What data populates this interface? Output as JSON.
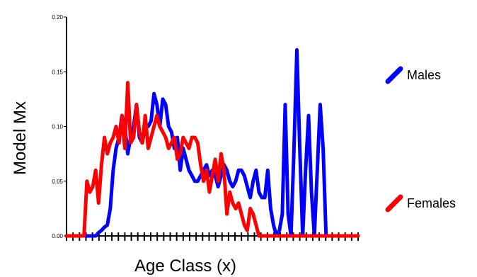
{
  "chart_data": {
    "type": "line",
    "xlabel": "Age Class (x)",
    "ylabel": "Model Mx",
    "ylim": [
      0,
      0.2
    ],
    "yticks": [
      "0.00",
      "0.05",
      "0.10",
      "0.15",
      "0.20"
    ],
    "x": [
      0,
      1,
      2,
      3,
      4,
      5,
      6,
      7,
      8,
      9,
      10,
      11,
      12,
      13,
      14,
      15,
      16,
      17,
      18,
      19,
      20,
      21,
      22,
      23,
      24,
      25,
      26,
      27,
      28,
      29,
      30,
      31,
      32,
      33,
      34,
      35,
      36,
      37,
      38,
      39,
      40,
      41,
      42,
      43,
      44,
      45,
      46,
      47,
      48,
      49,
      50,
      51,
      52,
      53,
      54,
      55,
      56,
      57,
      58,
      59,
      60,
      61,
      62,
      63,
      64,
      65,
      66,
      67,
      68,
      69,
      70,
      71,
      72,
      73,
      74,
      75,
      76,
      77,
      78,
      79,
      80,
      81,
      82,
      83,
      84,
      85,
      86,
      87,
      88,
      89,
      90,
      91,
      92,
      93,
      94,
      95,
      96,
      97,
      98,
      99,
      100
    ],
    "series": [
      {
        "name": "Males",
        "color": "#0000ff",
        "values": [
          0,
          0,
          0,
          0,
          0,
          0,
          0,
          0,
          0,
          0,
          0,
          0.003,
          0.005,
          0.008,
          0.01,
          0.025,
          0.06,
          0.08,
          0.09,
          0.11,
          0.1,
          0.075,
          0.09,
          0.1,
          0.12,
          0.09,
          0.085,
          0.1,
          0.1,
          0.105,
          0.13,
          0.12,
          0.1,
          0.125,
          0.12,
          0.1,
          0.095,
          0.08,
          0.09,
          0.06,
          0.08,
          0.07,
          0.06,
          0.055,
          0.05,
          0.05,
          0.055,
          0.06,
          0.065,
          0.055,
          0.06,
          0.055,
          0.045,
          0.055,
          0.065,
          0.06,
          0.05,
          0.045,
          0.05,
          0.06,
          0.06,
          0.055,
          0.045,
          0.035,
          0.05,
          0.06,
          0.04,
          0.035,
          0.035,
          0.06,
          0.025,
          0.01,
          0,
          0.005,
          0.02,
          0.12,
          0.02,
          0,
          0.08,
          0.17,
          0.08,
          0,
          0.06,
          0.11,
          0.04,
          0,
          0.06,
          0.12,
          0.08,
          0,
          0,
          0,
          0,
          0,
          0,
          0,
          0,
          0,
          0,
          0,
          0
        ]
      },
      {
        "name": "Females",
        "color": "#ff0000",
        "values": [
          0,
          0,
          0,
          0,
          0,
          0,
          0,
          0.05,
          0.04,
          0.045,
          0.06,
          0.03,
          0.065,
          0.09,
          0.075,
          0.085,
          0.09,
          0.1,
          0.085,
          0.11,
          0.08,
          0.14,
          0.085,
          0.09,
          0.12,
          0.095,
          0.085,
          0.11,
          0.08,
          0.09,
          0.1,
          0.11,
          0.1,
          0.095,
          0.09,
          0.08,
          0.085,
          0.09,
          0.07,
          0.075,
          0.09,
          0.085,
          0.08,
          0.09,
          0.09,
          0.085,
          0.065,
          0.05,
          0.06,
          0.04,
          0.055,
          0.07,
          0.05,
          0.075,
          0.06,
          0.02,
          0.04,
          0.03,
          0.025,
          0.03,
          0.02,
          0.01,
          0.005,
          0.025,
          0.02,
          0.01,
          0,
          0,
          0,
          0,
          0,
          0,
          0,
          0,
          0,
          0,
          0,
          0,
          0,
          0,
          0,
          0,
          0,
          0,
          0,
          0,
          0,
          0,
          0,
          0,
          0,
          0,
          0,
          0,
          0,
          0,
          0,
          0,
          0,
          0,
          0
        ]
      }
    ],
    "legend_position": "right",
    "grid": false,
    "x_tick_count": 46
  }
}
